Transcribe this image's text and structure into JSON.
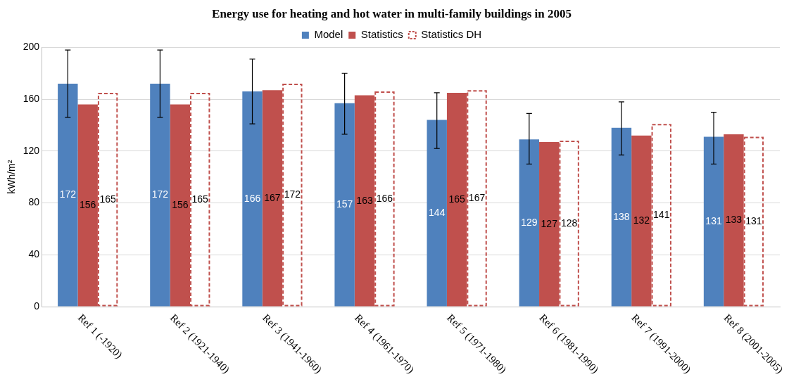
{
  "chart_data": {
    "type": "bar",
    "title": "Energy use for heating and hot water in multi-family buildings in 2005",
    "ylabel": "kWh/m²",
    "categories": [
      "Ref 1 (-1920)",
      "Ref 2 (1921-1940)",
      "Ref 3 (1941-1960)",
      "Ref 4 (1961-1970)",
      "Ref 5 (1971-1980)",
      "Ref 6 (1981-1990)",
      "Ref 7 (1991-2000)",
      "Ref 8 (2001-2005)"
    ],
    "series": [
      {
        "name": "Model",
        "color": "#4f81bd",
        "values": [
          172,
          172,
          166,
          157,
          144,
          129,
          138,
          131
        ],
        "errors": [
          [
            146,
            198
          ],
          [
            146,
            198
          ],
          [
            141,
            191
          ],
          [
            133,
            180
          ],
          [
            122,
            165
          ],
          [
            110,
            149
          ],
          [
            117,
            158
          ],
          [
            110,
            150
          ]
        ]
      },
      {
        "name": "Statistics",
        "color": "#c0504d",
        "values": [
          156,
          156,
          167,
          163,
          165,
          127,
          132,
          133
        ]
      },
      {
        "name": "Statistics DH",
        "color": "#c0504d",
        "line_style": "dashed",
        "values": [
          165,
          165,
          172,
          166,
          167,
          128,
          141,
          131
        ]
      }
    ],
    "ylim": [
      0,
      200
    ],
    "yticks": [
      0,
      40,
      80,
      120,
      160,
      200
    ],
    "grid": "y",
    "legend": "top",
    "data_labels": true
  }
}
